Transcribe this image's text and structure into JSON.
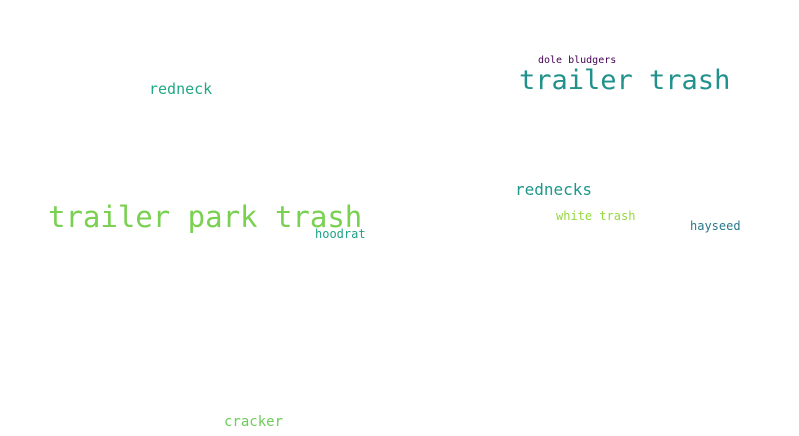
{
  "word_cloud": {
    "words": [
      {
        "id": "trailer-park-trash",
        "text": "trailer park trash",
        "color": "#7ad151"
      },
      {
        "id": "trailer-trash",
        "text": "trailer trash",
        "color": "#21918c"
      },
      {
        "id": "rednecks",
        "text": "rednecks",
        "color": "#1f978b"
      },
      {
        "id": "redneck",
        "text": "redneck",
        "color": "#22a884"
      },
      {
        "id": "cracker",
        "text": "cracker",
        "color": "#6ccd5a"
      },
      {
        "id": "hayseed",
        "text": "hayseed",
        "color": "#2a788e"
      },
      {
        "id": "white-trash",
        "text": "white trash",
        "color": "#95d840"
      },
      {
        "id": "hoodrat",
        "text": "hoodrat",
        "color": "#1fa187"
      },
      {
        "id": "dole-bludgers",
        "text": "dole bludgers",
        "color": "#440154"
      }
    ]
  }
}
